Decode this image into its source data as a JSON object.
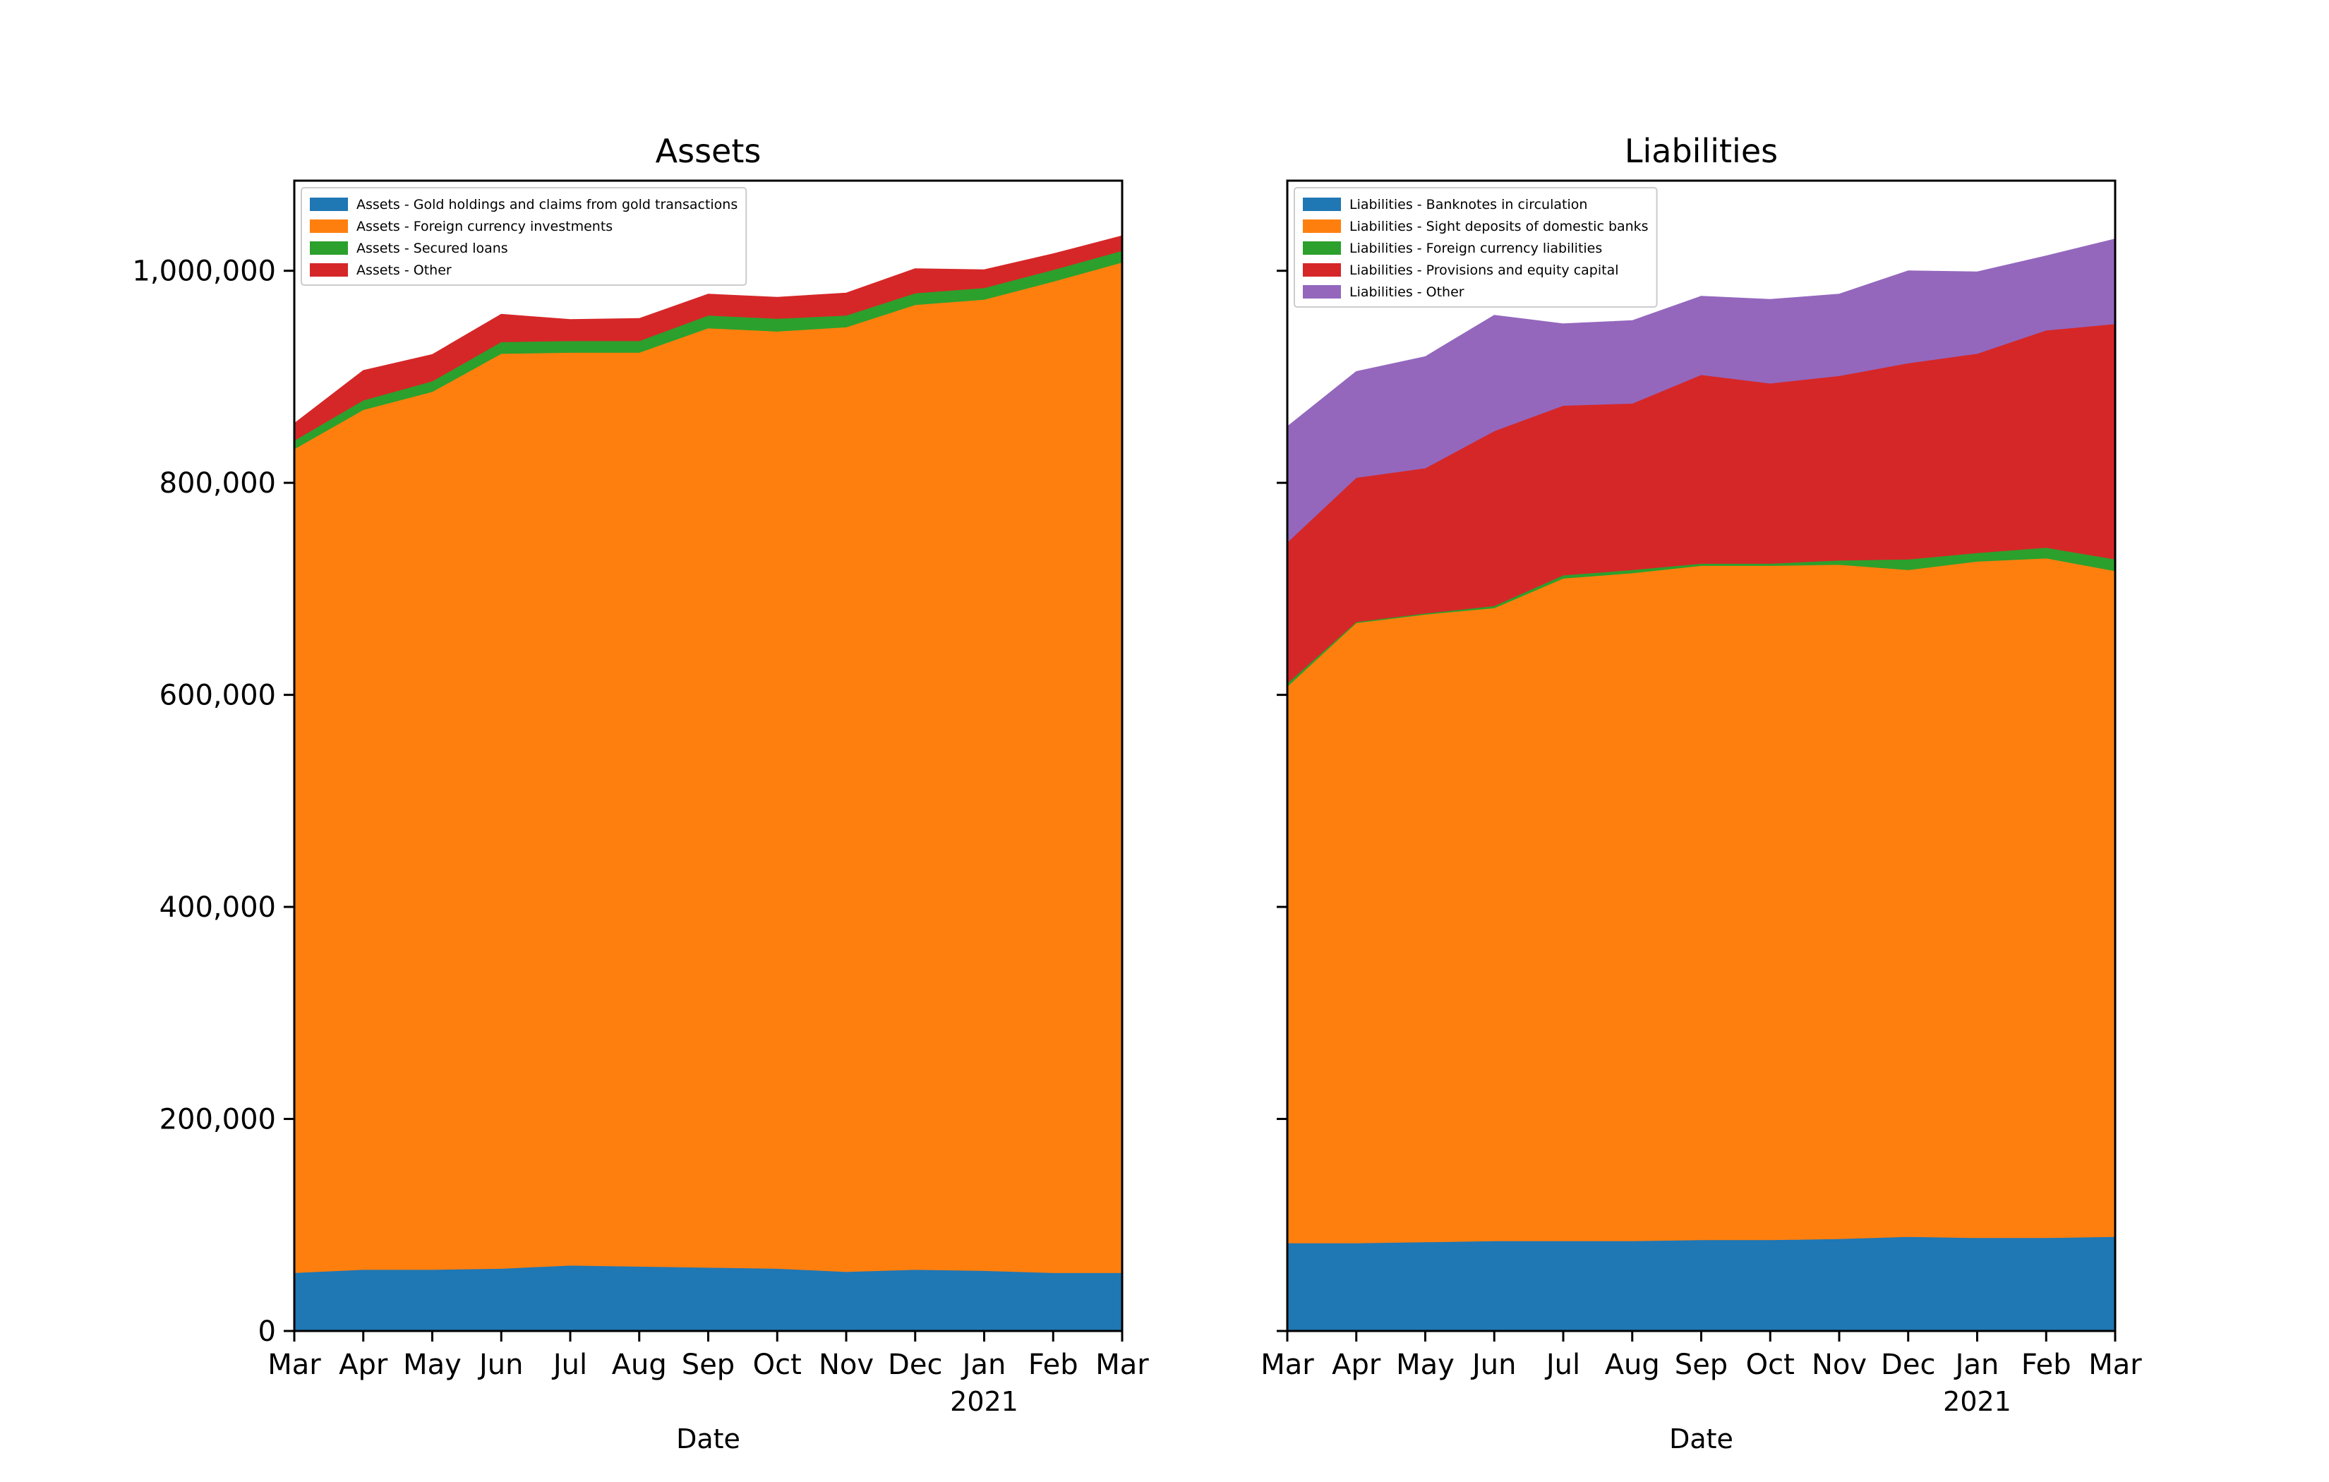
{
  "colors": {
    "blue": "#1f77b4",
    "orange": "#ff7f0e",
    "green": "#2ca02c",
    "red": "#d62728",
    "purple": "#9467bd"
  },
  "chart_data": [
    {
      "type": "area",
      "title": "Assets",
      "xlabel": "Date",
      "ylabel": "",
      "ylim": [
        0,
        1085000
      ],
      "stacked": true,
      "grid": false,
      "legend_placement": "top-left",
      "x": [
        "2020-03",
        "2020-04",
        "2020-05",
        "2020-06",
        "2020-07",
        "2020-08",
        "2020-09",
        "2020-10",
        "2020-11",
        "2020-12",
        "2021-01",
        "2021-02",
        "2021-03"
      ],
      "x_tick_labels": [
        "Mar",
        "Apr",
        "May",
        "Jun",
        "Jul",
        "Aug",
        "Sep",
        "Oct",
        "Nov",
        "Dec",
        "Jan",
        "Feb",
        "Mar"
      ],
      "x_year_label": "2021",
      "y_ticks": [
        0,
        200000,
        400000,
        600000,
        800000,
        1000000
      ],
      "y_tick_labels": [
        "0",
        "200,000",
        "400,000",
        "600,000",
        "800,000",
        "1,000,000"
      ],
      "series": [
        {
          "name": "Assets - Gold holdings and claims from gold transactions",
          "color": "blue",
          "values": [
            55000,
            58000,
            58000,
            59000,
            62000,
            61000,
            60000,
            59000,
            56000,
            58000,
            57000,
            55000,
            55000
          ]
        },
        {
          "name": "Assets - Foreign currency investments",
          "color": "orange",
          "values": [
            777000,
            811000,
            828000,
            863000,
            861000,
            862000,
            886000,
            884000,
            891000,
            910000,
            916000,
            935000,
            953000
          ]
        },
        {
          "name": "Assets - Secured loans",
          "color": "green",
          "values": [
            8000,
            9000,
            10000,
            11000,
            11000,
            11000,
            12000,
            12000,
            11000,
            11000,
            11000,
            11000,
            11000
          ]
        },
        {
          "name": "Assets - Other",
          "color": "red",
          "values": [
            16000,
            28000,
            25000,
            26000,
            20000,
            21000,
            20000,
            20000,
            21000,
            23000,
            17000,
            15000,
            14000
          ]
        }
      ]
    },
    {
      "type": "area",
      "title": "Liabilities",
      "xlabel": "Date",
      "ylabel": "",
      "ylim": [
        0,
        1085000
      ],
      "stacked": true,
      "grid": false,
      "legend_placement": "top-left",
      "x": [
        "2020-03",
        "2020-04",
        "2020-05",
        "2020-06",
        "2020-07",
        "2020-08",
        "2020-09",
        "2020-10",
        "2020-11",
        "2020-12",
        "2021-01",
        "2021-02",
        "2021-03"
      ],
      "x_tick_labels": [
        "Mar",
        "Apr",
        "May",
        "Jun",
        "Jul",
        "Aug",
        "Sep",
        "Oct",
        "Nov",
        "Dec",
        "Jan",
        "Feb",
        "Mar"
      ],
      "x_year_label": "2021",
      "y_ticks": [
        0,
        200000,
        400000,
        600000,
        800000,
        1000000
      ],
      "y_tick_labels": [
        "",
        "",
        "",
        "",
        "",
        ""
      ],
      "series": [
        {
          "name": "Liabilities - Banknotes in circulation",
          "color": "blue",
          "values": [
            83000,
            83000,
            84000,
            85000,
            85000,
            85000,
            86000,
            86000,
            87000,
            89000,
            88000,
            88000,
            89000
          ]
        },
        {
          "name": "Liabilities - Sight deposits of domestic banks",
          "color": "orange",
          "values": [
            525000,
            585000,
            592000,
            597000,
            625000,
            630000,
            636000,
            636000,
            636000,
            629000,
            638000,
            641000,
            628000
          ]
        },
        {
          "name": "Liabilities - Foreign currency liabilities",
          "color": "green",
          "values": [
            3000,
            1000,
            1000,
            2000,
            3000,
            3000,
            2000,
            2000,
            4000,
            10000,
            8000,
            10000,
            11000
          ]
        },
        {
          "name": "Liabilities - Provisions and equity capital",
          "color": "red",
          "values": [
            133000,
            136000,
            137000,
            165000,
            160000,
            157000,
            178000,
            170000,
            174000,
            185000,
            188000,
            205000,
            222000
          ]
        },
        {
          "name": "Liabilities - Other",
          "color": "purple",
          "values": [
            109000,
            100000,
            105000,
            109000,
            77000,
            78000,
            74000,
            79000,
            77000,
            87000,
            77000,
            70000,
            80000
          ]
        }
      ]
    }
  ]
}
